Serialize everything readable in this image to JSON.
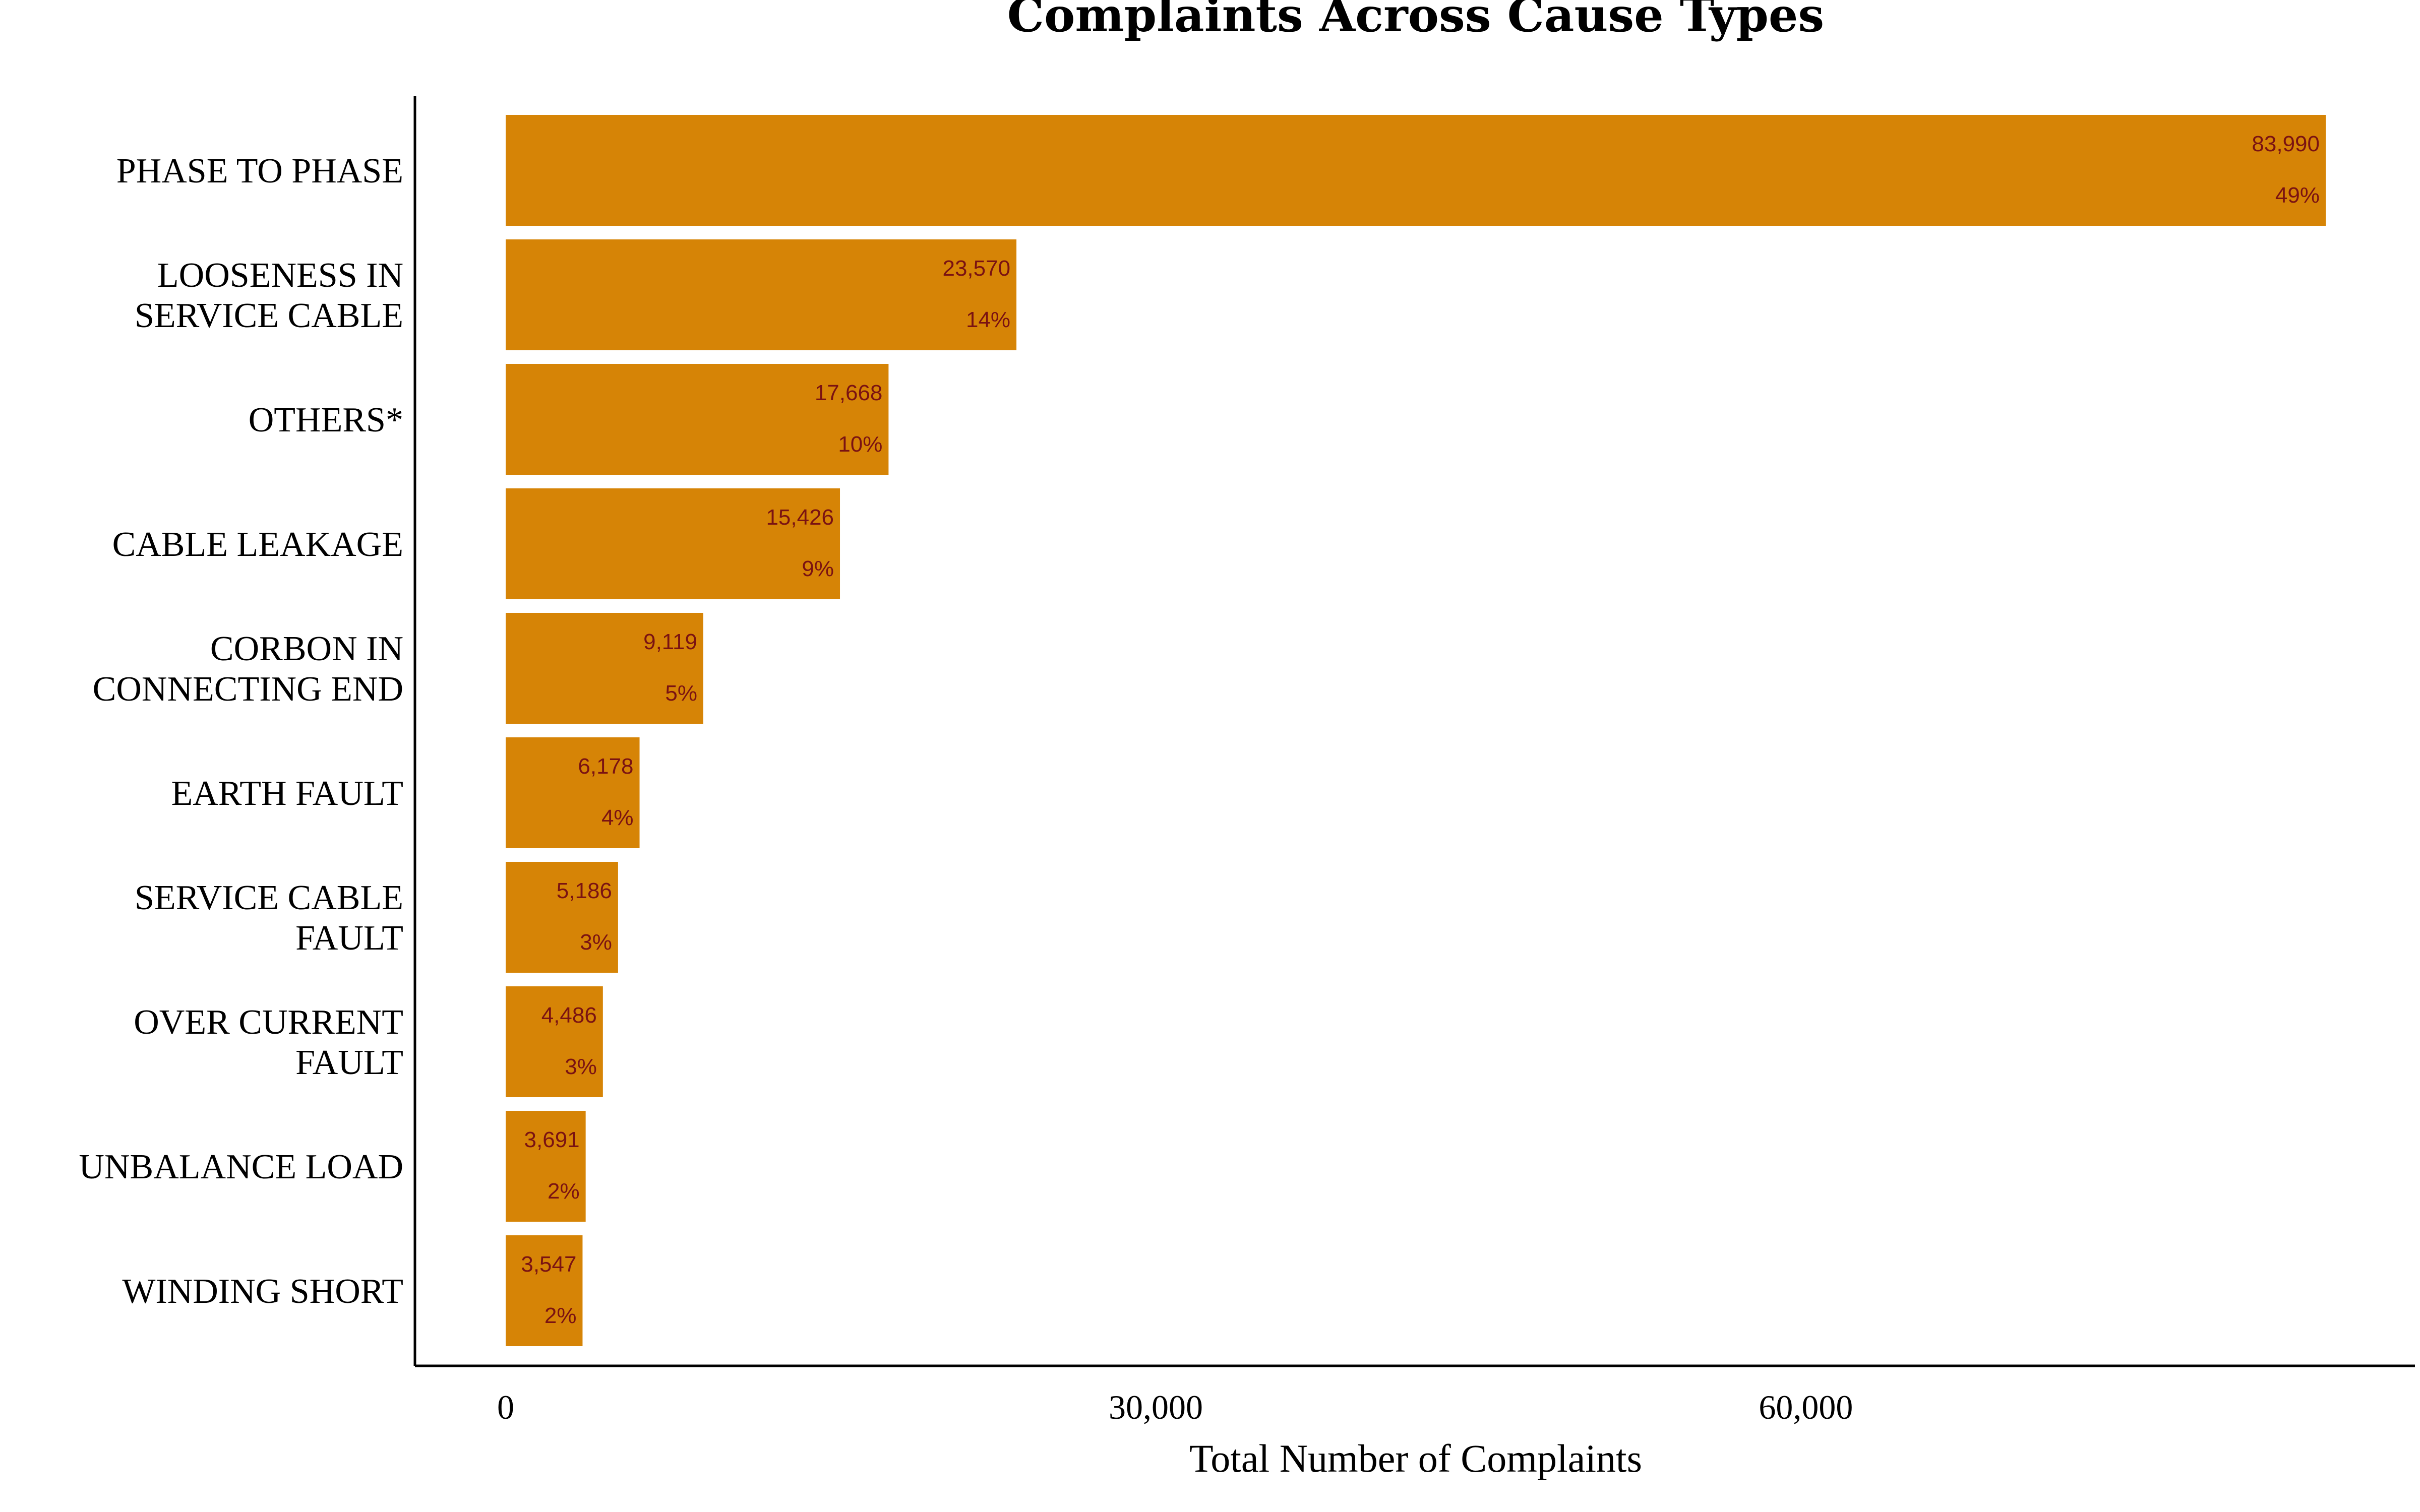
{
  "colors": {
    "bar": "#D68406",
    "label": "#7A1212",
    "axis": "#000000"
  },
  "chart_data": {
    "type": "bar",
    "orientation": "horizontal",
    "title": "Complaints Across Cause Types",
    "xlabel": "Total Number of Complaints",
    "ylabel": "",
    "xlim": [
      0,
      86000
    ],
    "xticks": [
      0,
      30000,
      60000
    ],
    "xtick_labels": [
      "0",
      "30,000",
      "60,000"
    ],
    "grid": false,
    "categories": [
      [
        "PHASE TO PHASE"
      ],
      [
        "LOOSENESS IN",
        "SERVICE CABLE"
      ],
      [
        "OTHERS*"
      ],
      [
        "CABLE LEAKAGE"
      ],
      [
        "CORBON IN",
        "CONNECTING END"
      ],
      [
        "EARTH FAULT"
      ],
      [
        "SERVICE CABLE",
        "FAULT"
      ],
      [
        "OVER CURRENT",
        "FAULT"
      ],
      [
        "UNBALANCE LOAD"
      ],
      [
        "WINDING SHORT"
      ]
    ],
    "values": [
      83990,
      23570,
      17668,
      15426,
      9119,
      6178,
      5186,
      4486,
      3691,
      3547
    ],
    "value_labels": [
      "83,990",
      "23,570",
      "17,668",
      "15,426",
      "9,119",
      "6,178",
      "5,186",
      "4,486",
      "3,691",
      "3,547"
    ],
    "percent_labels": [
      "49%",
      "14%",
      "10%",
      "9%",
      "5%",
      "4%",
      "3%",
      "3%",
      "2%",
      "2%"
    ]
  }
}
